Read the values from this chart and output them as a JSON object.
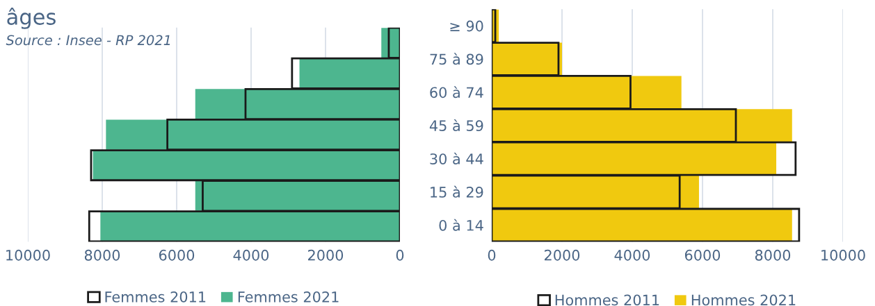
{
  "chart_data": [
    {
      "type": "bar",
      "orientation": "horizontal",
      "title": "âges",
      "annotations": [
        "Source : Insee - RP 2021"
      ],
      "categories": [
        null,
        null,
        null,
        null,
        null,
        null,
        null
      ],
      "tick_labels": "x",
      "xlim": [
        10000,
        0
      ],
      "xticks": [
        10000,
        8000,
        6000,
        4000,
        2000,
        0
      ],
      "grid": "x",
      "legend": "bottom",
      "series": [
        {
          "name": "Femmes 2021",
          "color": "#4db68f",
          "values": [
            500,
            2700,
            5500,
            7900,
            8250,
            5500,
            8050
          ]
        },
        {
          "name": "Femmes 2011",
          "color": "#1a1a1a",
          "line_style": "solid",
          "values": [
            300,
            2900,
            4150,
            6250,
            8300,
            5300,
            8350
          ]
        }
      ]
    },
    {
      "type": "bar",
      "orientation": "horizontal",
      "categories": [
        "≥ 90",
        "75 à 89",
        "60 à 74",
        "45 à 59",
        "30 à 44",
        "15 à 29",
        "0 à 14"
      ],
      "xlim": [
        0,
        10000
      ],
      "xticks": [
        0,
        2000,
        4000,
        6000,
        8000,
        10000
      ],
      "grid": "x",
      "legend": "bottom",
      "series": [
        {
          "name": "Hommes 2021",
          "color": "#f0c90f",
          "values": [
            200,
            2000,
            5400,
            8550,
            8100,
            5900,
            8550
          ]
        },
        {
          "name": "Hommes 2011",
          "color": "#1a1a1a",
          "line_style": "solid",
          "values": [
            100,
            1900,
            3950,
            6950,
            8650,
            5350,
            8750
          ]
        }
      ]
    }
  ]
}
